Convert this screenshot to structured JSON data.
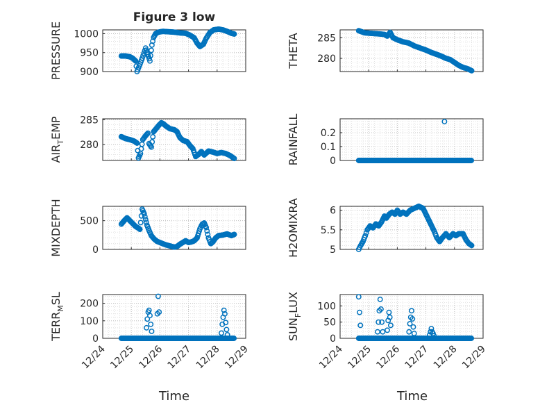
{
  "figure_title": "Figure 3 low",
  "colors": {
    "marker": "#0072BD",
    "axis": "#262626",
    "grid": "#c0c0c0"
  },
  "chart_data": [
    {
      "id": "pressure",
      "type": "scatter",
      "ylabel": "PRESSURE",
      "ylim": [
        900,
        1010
      ],
      "yticks": [
        900,
        950,
        1000
      ],
      "ytick_labels": [
        "900",
        "950",
        "1000"
      ],
      "xlim": [
        0,
        5
      ],
      "x": [],
      "y": []
    },
    {
      "id": "theta",
      "type": "scatter",
      "ylabel": "THETA",
      "ylim": [
        276.8,
        286.9
      ],
      "yticks": [
        280,
        285
      ],
      "ytick_labels": [
        "280",
        "285"
      ],
      "xlim": [
        0,
        5
      ],
      "x": [],
      "y": []
    },
    {
      "id": "air_temp",
      "type": "scatter",
      "ylabel": "AIR_TEMP",
      "ylabel_main": "AIR",
      "ylabel_sub": "T",
      "ylabel_rest": "EMP",
      "ylim": [
        276.8,
        285.2
      ],
      "yticks": [
        280,
        285
      ],
      "ytick_labels": [
        "280",
        "285"
      ],
      "xlim": [
        0,
        5
      ],
      "x": [],
      "y": []
    },
    {
      "id": "rainfall",
      "type": "scatter",
      "ylabel": "RAINFALL",
      "ylim": [
        0,
        0.3
      ],
      "yticks": [
        0,
        0.1,
        0.2
      ],
      "ytick_labels": [
        "0",
        "0.1",
        "0.2"
      ],
      "xlim": [
        0,
        5
      ],
      "x": [],
      "y": []
    },
    {
      "id": "mixdepth",
      "type": "scatter",
      "ylabel": "MIXDEPTH",
      "ylim": [
        0,
        750
      ],
      "yticks": [
        0,
        500
      ],
      "ytick_labels": [
        "0",
        "500"
      ],
      "xlim": [
        0,
        5
      ],
      "x": [],
      "y": []
    },
    {
      "id": "h2omixra",
      "type": "scatter",
      "ylabel": "H2OMIXRA",
      "ylim": [
        5,
        6.1
      ],
      "yticks": [
        5,
        5.5,
        6
      ],
      "ytick_labels": [
        "5",
        "5.5",
        "6"
      ],
      "xlim": [
        0,
        5
      ],
      "x": [],
      "y": []
    },
    {
      "id": "terr_msl",
      "type": "scatter",
      "ylabel": "TERR_MSL",
      "ylabel_main": "TERR",
      "ylabel_sub": "M",
      "ylabel_rest": "SL",
      "ylim": [
        0,
        250
      ],
      "yticks": [
        0,
        100,
        200
      ],
      "ytick_labels": [
        "0",
        "100",
        "200"
      ],
      "xlim": [
        0,
        5
      ],
      "x": [],
      "y": []
    },
    {
      "id": "sun_flux",
      "type": "scatter",
      "ylabel": "SUN_FLUX",
      "ylabel_main": "SUN",
      "ylabel_sub": "F",
      "ylabel_rest": "LUX",
      "ylim": [
        0,
        135
      ],
      "yticks": [
        0,
        50,
        100
      ],
      "ytick_labels": [
        "0",
        "50",
        "100"
      ],
      "xlim": [
        0,
        5
      ],
      "x": [],
      "y": []
    }
  ],
  "shared_x": {
    "xlim": [
      0,
      5
    ],
    "ticks": [
      0,
      1,
      2,
      3,
      4,
      5
    ],
    "tick_labels": [
      "12/24",
      "12/25",
      "12/26",
      "12/27",
      "12/28",
      "12/29"
    ],
    "xlabel": "Time"
  },
  "series_spec": {
    "pressure": [
      [
        0.65,
        941
      ],
      [
        0.8,
        941
      ],
      [
        0.95,
        939
      ],
      [
        1.05,
        935
      ],
      [
        1.15,
        928
      ],
      [
        1.2,
        900
      ],
      [
        1.28,
        915
      ],
      [
        1.38,
        935
      ],
      [
        1.5,
        962
      ],
      [
        1.6,
        940
      ],
      [
        1.65,
        928
      ],
      [
        1.72,
        970
      ],
      [
        1.78,
        990
      ],
      [
        1.85,
        1000
      ],
      [
        1.95,
        1004
      ],
      [
        2.1,
        1006
      ],
      [
        2.3,
        1005
      ],
      [
        2.5,
        1004
      ],
      [
        2.7,
        1002
      ],
      [
        2.9,
        1001
      ],
      [
        3.05,
        996
      ],
      [
        3.2,
        989
      ],
      [
        3.3,
        975
      ],
      [
        3.4,
        966
      ],
      [
        3.52,
        972
      ],
      [
        3.62,
        988
      ],
      [
        3.75,
        1003
      ],
      [
        3.88,
        1010
      ],
      [
        4.05,
        1012
      ],
      [
        4.2,
        1010
      ],
      [
        4.35,
        1006
      ],
      [
        4.5,
        1001
      ],
      [
        4.6,
        999
      ]
    ],
    "theta": [
      [
        0.65,
        286.7
      ],
      [
        0.85,
        286.2
      ],
      [
        1.0,
        286.1
      ],
      [
        1.2,
        286.0
      ],
      [
        1.4,
        285.9
      ],
      [
        1.55,
        285.8
      ],
      [
        1.65,
        285.4
      ],
      [
        1.75,
        286.3
      ],
      [
        1.85,
        285.0
      ],
      [
        2.0,
        284.5
      ],
      [
        2.2,
        284.0
      ],
      [
        2.4,
        283.7
      ],
      [
        2.6,
        283.0
      ],
      [
        2.8,
        282.5
      ],
      [
        3.0,
        282.0
      ],
      [
        3.2,
        281.4
      ],
      [
        3.4,
        280.9
      ],
      [
        3.55,
        280.5
      ],
      [
        3.7,
        280.0
      ],
      [
        3.85,
        279.7
      ],
      [
        4.0,
        279.0
      ],
      [
        4.15,
        278.3
      ],
      [
        4.3,
        277.8
      ],
      [
        4.45,
        277.5
      ],
      [
        4.6,
        277.0
      ]
    ],
    "air_temp": [
      [
        0.65,
        281.6
      ],
      [
        0.8,
        281.2
      ],
      [
        0.95,
        281.0
      ],
      [
        1.1,
        280.7
      ],
      [
        1.2,
        280.3
      ],
      [
        1.25,
        277.3
      ],
      [
        1.32,
        278.2
      ],
      [
        1.4,
        281.0
      ],
      [
        1.5,
        281.8
      ],
      [
        1.58,
        282.3
      ],
      [
        1.62,
        280.2
      ],
      [
        1.7,
        279.5
      ],
      [
        1.78,
        282.6
      ],
      [
        1.88,
        283.3
      ],
      [
        1.98,
        284.0
      ],
      [
        2.05,
        284.4
      ],
      [
        2.12,
        284.2
      ],
      [
        2.22,
        283.7
      ],
      [
        2.35,
        283.2
      ],
      [
        2.5,
        283.0
      ],
      [
        2.6,
        282.6
      ],
      [
        2.7,
        281.4
      ],
      [
        2.82,
        280.8
      ],
      [
        2.95,
        280.6
      ],
      [
        3.05,
        279.8
      ],
      [
        3.15,
        279.2
      ],
      [
        3.25,
        277.6
      ],
      [
        3.35,
        278.0
      ],
      [
        3.45,
        278.6
      ],
      [
        3.55,
        277.9
      ],
      [
        3.7,
        278.7
      ],
      [
        3.85,
        278.5
      ],
      [
        4.0,
        278.2
      ],
      [
        4.15,
        278.4
      ],
      [
        4.3,
        278.2
      ],
      [
        4.45,
        277.8
      ],
      [
        4.6,
        277.2
      ]
    ],
    "rainfall_peak": [
      3.65,
      0.28
    ],
    "mixdepth": [
      [
        0.65,
        440
      ],
      [
        0.75,
        500
      ],
      [
        0.85,
        550
      ],
      [
        0.95,
        500
      ],
      [
        1.05,
        450
      ],
      [
        1.15,
        400
      ],
      [
        1.25,
        370
      ],
      [
        1.3,
        350
      ],
      [
        1.38,
        700
      ],
      [
        1.45,
        620
      ],
      [
        1.55,
        420
      ],
      [
        1.62,
        330
      ],
      [
        1.7,
        240
      ],
      [
        1.8,
        180
      ],
      [
        1.9,
        140
      ],
      [
        2.05,
        110
      ],
      [
        2.2,
        80
      ],
      [
        2.35,
        60
      ],
      [
        2.5,
        40
      ],
      [
        2.6,
        50
      ],
      [
        2.7,
        90
      ],
      [
        2.8,
        120
      ],
      [
        2.9,
        150
      ],
      [
        3.0,
        120
      ],
      [
        3.1,
        130
      ],
      [
        3.2,
        150
      ],
      [
        3.3,
        200
      ],
      [
        3.4,
        360
      ],
      [
        3.48,
        440
      ],
      [
        3.55,
        460
      ],
      [
        3.62,
        380
      ],
      [
        3.7,
        200
      ],
      [
        3.78,
        100
      ],
      [
        3.85,
        130
      ],
      [
        3.95,
        200
      ],
      [
        4.05,
        240
      ],
      [
        4.2,
        250
      ],
      [
        4.35,
        270
      ],
      [
        4.5,
        240
      ],
      [
        4.6,
        260
      ]
    ],
    "h2omixra": [
      [
        0.65,
        5.0
      ],
      [
        0.72,
        5.1
      ],
      [
        0.8,
        5.2
      ],
      [
        0.88,
        5.35
      ],
      [
        0.95,
        5.5
      ],
      [
        1.05,
        5.6
      ],
      [
        1.15,
        5.55
      ],
      [
        1.25,
        5.65
      ],
      [
        1.35,
        5.6
      ],
      [
        1.45,
        5.7
      ],
      [
        1.55,
        5.85
      ],
      [
        1.62,
        5.8
      ],
      [
        1.72,
        5.9
      ],
      [
        1.82,
        5.95
      ],
      [
        1.92,
        5.9
      ],
      [
        2.0,
        6.0
      ],
      [
        2.1,
        5.9
      ],
      [
        2.2,
        5.95
      ],
      [
        2.32,
        5.9
      ],
      [
        2.45,
        6.0
      ],
      [
        2.6,
        6.05
      ],
      [
        2.75,
        6.1
      ],
      [
        2.9,
        6.05
      ],
      [
        3.0,
        5.9
      ],
      [
        3.1,
        5.75
      ],
      [
        3.2,
        5.6
      ],
      [
        3.3,
        5.45
      ],
      [
        3.38,
        5.3
      ],
      [
        3.48,
        5.2
      ],
      [
        3.58,
        5.3
      ],
      [
        3.7,
        5.4
      ],
      [
        3.82,
        5.3
      ],
      [
        3.95,
        5.4
      ],
      [
        4.05,
        5.35
      ],
      [
        4.15,
        5.4
      ],
      [
        4.3,
        5.4
      ],
      [
        4.4,
        5.25
      ],
      [
        4.5,
        5.15
      ],
      [
        4.6,
        5.1
      ]
    ],
    "terr_msl_spikes": [
      [
        1.5,
        [
          0,
          60,
          110,
          150,
          160,
          130,
          80,
          40
        ]
      ],
      [
        1.88,
        [
          0,
          140,
          240,
          150
        ]
      ],
      [
        4.12,
        [
          0,
          30,
          80,
          120,
          160,
          140,
          90,
          50,
          20
        ]
      ]
    ],
    "sun_flux_spikes": [
      [
        0.65,
        [
          128,
          80,
          40
        ]
      ],
      [
        1.28,
        [
          0,
          20,
          50,
          85,
          120,
          90,
          50,
          20
        ]
      ],
      [
        1.62,
        [
          0,
          25,
          55,
          80,
          65,
          40
        ]
      ],
      [
        2.38,
        [
          0,
          20,
          45,
          65,
          85,
          60,
          35,
          15
        ]
      ],
      [
        3.1,
        [
          0,
          10,
          20,
          30,
          20,
          15,
          8
        ]
      ]
    ]
  }
}
